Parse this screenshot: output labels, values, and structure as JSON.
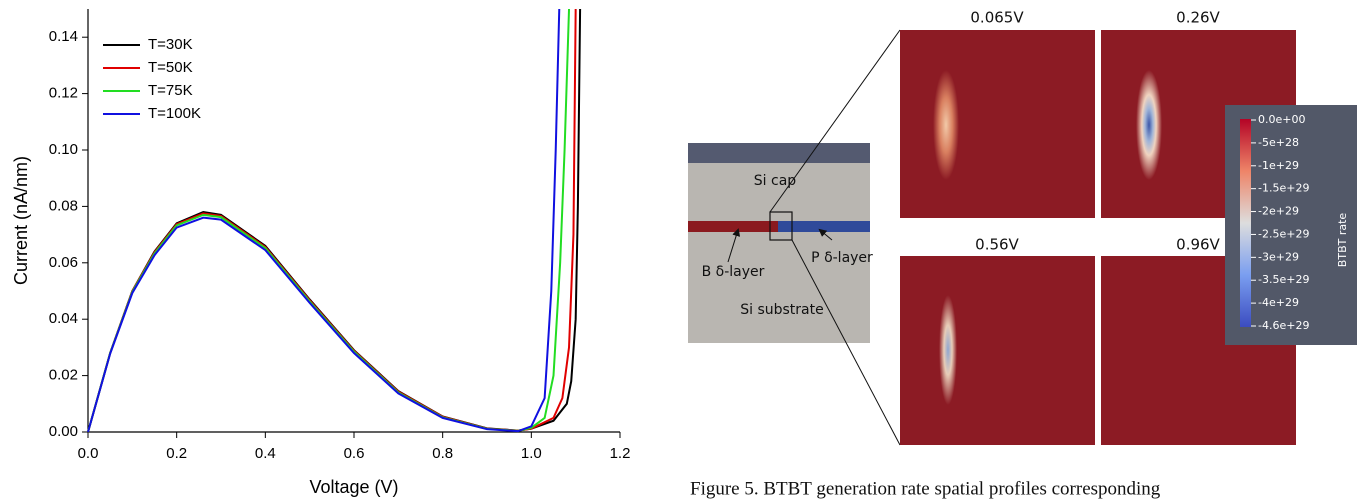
{
  "chart_data": {
    "type": "line",
    "xlabel": "Voltage (V)",
    "ylabel": "Current (nA/nm)",
    "xlim": [
      0,
      1.2
    ],
    "ylim": [
      0,
      0.15
    ],
    "xticks": [
      {
        "value": 0,
        "label": "0.0"
      },
      0.2,
      0.4,
      0.6,
      0.8,
      {
        "value": 1,
        "label": "1.0"
      },
      1.2
    ],
    "yticks": [
      {
        "value": 0,
        "label": "0.00"
      },
      0.02,
      0.04,
      0.06,
      0.08,
      {
        "value": 0.1,
        "label": "0.10"
      },
      0.12,
      0.14
    ],
    "legend": "upper left",
    "series": [
      {
        "name": "T=30K",
        "color": "#000000",
        "x": [
          0,
          0.05,
          0.1,
          0.15,
          0.2,
          0.26,
          0.3,
          0.4,
          0.5,
          0.6,
          0.7,
          0.8,
          0.9,
          0.97,
          1.0,
          1.05,
          1.08,
          1.09,
          1.1,
          1.105,
          1.11
        ],
        "values": [
          0,
          0.028,
          0.05,
          0.064,
          0.074,
          0.078,
          0.077,
          0.066,
          0.047,
          0.029,
          0.0145,
          0.0055,
          0.0013,
          0.0005,
          0.0012,
          0.004,
          0.01,
          0.018,
          0.04,
          0.08,
          0.15
        ]
      },
      {
        "name": "T=50K",
        "color": "#e00000",
        "x": [
          0,
          0.05,
          0.1,
          0.15,
          0.2,
          0.26,
          0.3,
          0.4,
          0.5,
          0.6,
          0.7,
          0.8,
          0.9,
          0.97,
          1.0,
          1.05,
          1.07,
          1.085,
          1.095,
          1.1
        ],
        "values": [
          0,
          0.028,
          0.05,
          0.0637,
          0.0737,
          0.0775,
          0.0766,
          0.0656,
          0.0467,
          0.0288,
          0.0143,
          0.0054,
          0.0012,
          0.0005,
          0.0012,
          0.005,
          0.012,
          0.03,
          0.07,
          0.15
        ]
      },
      {
        "name": "T=75K",
        "color": "#22dd22",
        "x": [
          0,
          0.05,
          0.1,
          0.15,
          0.2,
          0.26,
          0.3,
          0.4,
          0.5,
          0.6,
          0.7,
          0.8,
          0.9,
          0.97,
          1.0,
          1.03,
          1.05,
          1.065,
          1.075,
          1.085
        ],
        "values": [
          0,
          0.028,
          0.0497,
          0.0633,
          0.0733,
          0.077,
          0.0762,
          0.0652,
          0.0463,
          0.0285,
          0.014,
          0.0052,
          0.0011,
          0.0004,
          0.0015,
          0.005,
          0.02,
          0.06,
          0.1,
          0.15
        ]
      },
      {
        "name": "T=100K",
        "color": "#1010e0",
        "x": [
          0,
          0.05,
          0.1,
          0.15,
          0.2,
          0.26,
          0.3,
          0.4,
          0.5,
          0.6,
          0.7,
          0.8,
          0.9,
          0.97,
          1.0,
          1.03,
          1.045,
          1.055,
          1.063
        ],
        "values": [
          0,
          0.0278,
          0.0493,
          0.0627,
          0.0725,
          0.076,
          0.0753,
          0.0645,
          0.0458,
          0.028,
          0.0137,
          0.005,
          0.001,
          0.0003,
          0.002,
          0.012,
          0.05,
          0.1,
          0.15
        ]
      }
    ]
  },
  "figure": {
    "cross_section": {
      "cap": "Si cap",
      "b_layer": "B δ-layer",
      "p_layer": "P δ-layer",
      "substrate": "Si substrate"
    },
    "panels": [
      "0.065V",
      "0.26V",
      "0.56V",
      "0.96V"
    ],
    "colorbar": {
      "title": "BTBT rate",
      "labels": [
        "0.0e+00",
        "-5e+28",
        "-1e+29",
        "-1.5e+29",
        "-2e+29",
        "-2.5e+29",
        "-3e+29",
        "-3.5e+29",
        "-4e+29",
        "-4.6e+29"
      ]
    },
    "caption": "Figure 5. BTBT generation rate spatial profiles corresponding"
  }
}
